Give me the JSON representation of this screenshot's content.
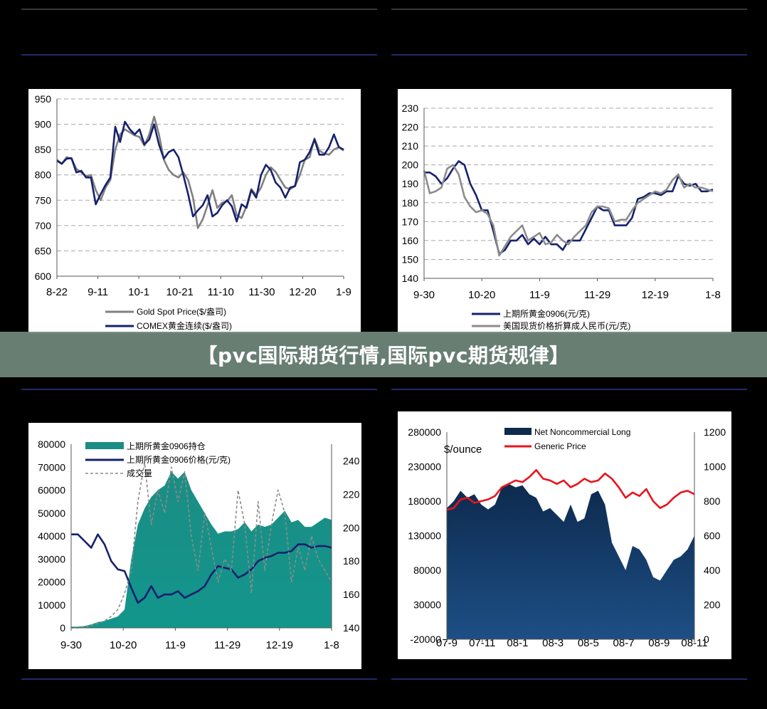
{
  "banner": {
    "title": "【pvc国际期货行情,国际pvc期货规律】"
  },
  "chart_data": [
    {
      "type": "line",
      "ylim": [
        600,
        950
      ],
      "yticks": [
        600,
        650,
        700,
        750,
        800,
        850,
        900,
        950
      ],
      "xticks": [
        "8-22",
        "9-11",
        "10-1",
        "10-21",
        "11-10",
        "11-30",
        "12-20",
        "1-9"
      ],
      "grid": true,
      "legend_position": "bottom",
      "series": [
        {
          "name": "Gold Spot Price($/盎司)",
          "color": "#808080",
          "values": [
            830,
            822,
            835,
            832,
            812,
            805,
            797,
            800,
            770,
            750,
            775,
            790,
            850,
            880,
            890,
            884,
            878,
            875,
            858,
            880,
            915,
            880,
            830,
            810,
            800,
            795,
            805,
            790,
            755,
            695,
            712,
            740,
            770,
            735,
            745,
            748,
            760,
            720,
            715,
            738,
            772,
            760,
            775,
            800,
            815,
            806,
            790,
            775,
            772,
            778,
            800,
            830,
            835,
            872,
            848,
            842,
            840,
            850,
            855,
            848
          ]
        },
        {
          "name": "COMEX黄金连续($/盎司)",
          "color": "#16216e",
          "values": [
            828,
            822,
            832,
            833,
            805,
            808,
            795,
            795,
            742,
            762,
            780,
            795,
            895,
            865,
            905,
            890,
            880,
            890,
            860,
            870,
            900,
            860,
            832,
            845,
            850,
            835,
            800,
            762,
            718,
            730,
            740,
            760,
            718,
            725,
            740,
            750,
            738,
            708,
            742,
            735,
            770,
            755,
            800,
            820,
            810,
            785,
            775,
            755,
            775,
            778,
            825,
            830,
            845,
            870,
            840,
            840,
            855,
            880,
            855,
            850
          ]
        }
      ]
    },
    {
      "type": "line",
      "ylim": [
        140,
        230
      ],
      "yticks": [
        140,
        150,
        160,
        170,
        180,
        190,
        200,
        210,
        220,
        230
      ],
      "xticks": [
        "9-30",
        "10-20",
        "11-9",
        "11-29",
        "12-19",
        "1-8"
      ],
      "grid": true,
      "legend_position": "bottom",
      "series": [
        {
          "name": "上期所黄金0906(元/克)",
          "color": "#16216e",
          "values": [
            196,
            196,
            194,
            190,
            193,
            198,
            202,
            200,
            190,
            184,
            176,
            176,
            165,
            153,
            155,
            160,
            160,
            163,
            158,
            161,
            158,
            162,
            158,
            158,
            155,
            160,
            160,
            160,
            166,
            172,
            178,
            176,
            176,
            168,
            168,
            168,
            172,
            182,
            183,
            185,
            185,
            184,
            186,
            186,
            194,
            190,
            189,
            190,
            186,
            186,
            187
          ]
        },
        {
          "name": "美国现货价格折算成人民币(元/克)",
          "color": "#8c8c8c",
          "values": [
            197,
            185,
            186,
            188,
            198,
            200,
            195,
            183,
            178,
            175,
            176,
            174,
            168,
            152,
            157,
            162,
            165,
            168,
            160,
            162,
            164,
            158,
            159,
            163,
            160,
            158,
            162,
            165,
            168,
            175,
            178,
            178,
            177,
            170,
            171,
            171,
            176,
            180,
            182,
            184,
            186,
            185,
            187,
            192,
            195,
            188,
            190,
            188,
            188,
            187,
            186
          ]
        }
      ]
    },
    {
      "type": "area",
      "ylim_left": [
        0,
        80000
      ],
      "ylim_right": [
        140,
        250
      ],
      "yticks_left": [
        0,
        10000,
        20000,
        30000,
        40000,
        50000,
        60000,
        70000,
        80000
      ],
      "yticks_right": [
        140,
        160,
        180,
        200,
        220,
        240
      ],
      "xticks": [
        "9-30",
        "10-20",
        "11-9",
        "11-29",
        "12-19",
        "1-8"
      ],
      "grid": false,
      "legend_position": "top-left",
      "series": [
        {
          "name": "上期所黄金0906持仓",
          "kind": "area",
          "axis": "left",
          "color": "#1b8d84",
          "values": [
            500,
            500,
            800,
            1500,
            2500,
            3000,
            4000,
            5000,
            8000,
            30000,
            45000,
            52000,
            57000,
            60000,
            62000,
            68000,
            65000,
            68000,
            60000,
            55000,
            50000,
            45000,
            41000,
            42000,
            42000,
            43000,
            46000,
            42000,
            45000,
            44000,
            45000,
            48000,
            51000,
            46000,
            47000,
            44000,
            44000,
            46000,
            48000,
            47000
          ]
        },
        {
          "name": "上期所黄金0906价格(元/克)",
          "kind": "line",
          "axis": "right",
          "color": "#16216e",
          "values": [
            196,
            196,
            192,
            188,
            196,
            190,
            180,
            175,
            174,
            164,
            155,
            158,
            165,
            158,
            160,
            160,
            162,
            158,
            160,
            162,
            165,
            172,
            177,
            176,
            175,
            170,
            172,
            175,
            180,
            182,
            183,
            185,
            185,
            186,
            190,
            190,
            188,
            189,
            189,
            188
          ]
        },
        {
          "name": "成交量",
          "kind": "dashed",
          "axis": "left",
          "color": "#8c8c8c",
          "values": [
            0,
            0,
            500,
            1000,
            2000,
            3000,
            5000,
            8000,
            15000,
            25000,
            55000,
            72000,
            45000,
            60000,
            50000,
            70000,
            55000,
            68000,
            40000,
            25000,
            50000,
            35000,
            20000,
            30000,
            25000,
            60000,
            45000,
            15000,
            55000,
            25000,
            45000,
            60000,
            50000,
            20000,
            35000,
            25000,
            40000,
            30000,
            25000,
            20000
          ]
        }
      ]
    },
    {
      "type": "area",
      "ylabel": "$/ounce",
      "ylim_left": [
        -20000,
        280000
      ],
      "ylim_right": [
        0,
        1200
      ],
      "yticks_left": [
        -20000,
        30000,
        80000,
        130000,
        180000,
        230000,
        280000
      ],
      "yticks_right": [
        0,
        200,
        400,
        600,
        800,
        1000,
        1200
      ],
      "xticks": [
        "07-9",
        "07-11",
        "08-1",
        "08-3",
        "08-5",
        "08-7",
        "08-9",
        "08-11"
      ],
      "grid": false,
      "legend_position": "top",
      "series": [
        {
          "name": "Net Noncommercial Long",
          "kind": "area",
          "axis": "left",
          "color": "#0d2a4e",
          "values": [
            170000,
            180000,
            195000,
            185000,
            190000,
            175000,
            168000,
            175000,
            200000,
            205000,
            200000,
            203000,
            190000,
            185000,
            165000,
            170000,
            160000,
            150000,
            175000,
            150000,
            155000,
            190000,
            195000,
            175000,
            120000,
            100000,
            80000,
            115000,
            110000,
            95000,
            70000,
            65000,
            80000,
            95000,
            100000,
            110000,
            130000
          ]
        },
        {
          "name": "Generic Price",
          "kind": "line",
          "axis": "right",
          "color": "#e8141c",
          "values": [
            750,
            760,
            810,
            820,
            790,
            800,
            810,
            830,
            880,
            900,
            920,
            910,
            940,
            980,
            930,
            920,
            900,
            920,
            880,
            900,
            930,
            910,
            920,
            960,
            930,
            880,
            820,
            850,
            830,
            870,
            800,
            760,
            780,
            820,
            850,
            860,
            840
          ]
        }
      ]
    }
  ]
}
